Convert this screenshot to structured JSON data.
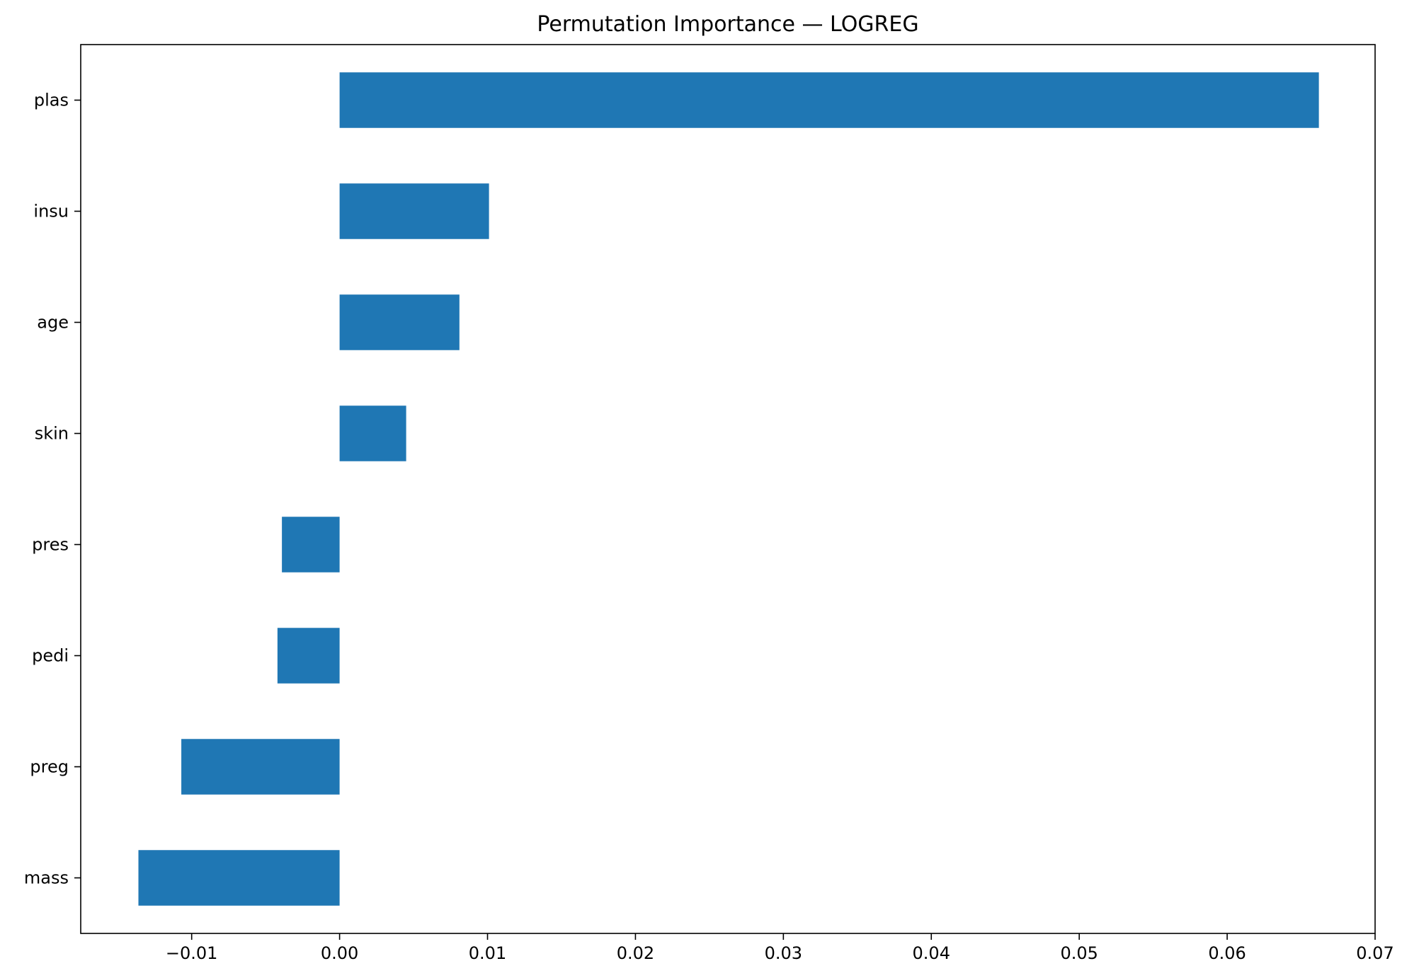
{
  "chart_data": {
    "type": "bar",
    "orientation": "horizontal",
    "title": "Permutation Importance — LOGREG",
    "xlabel": "",
    "ylabel": "",
    "categories": [
      "plas",
      "insu",
      "age",
      "skin",
      "pres",
      "pedi",
      "preg",
      "mass"
    ],
    "values": [
      0.0662,
      0.0101,
      0.0081,
      0.0045,
      -0.0039,
      -0.0042,
      -0.0107,
      -0.0136
    ],
    "xlim": [
      -0.0175,
      0.07
    ],
    "xticks": [
      -0.01,
      0.0,
      0.01,
      0.02,
      0.03,
      0.04,
      0.05,
      0.06,
      0.07
    ],
    "xtick_labels": [
      "−0.01",
      "0.00",
      "0.01",
      "0.02",
      "0.03",
      "0.04",
      "0.05",
      "0.06",
      "0.07"
    ],
    "grid": false,
    "legend": "none",
    "bar_color": "#1f77b4"
  }
}
